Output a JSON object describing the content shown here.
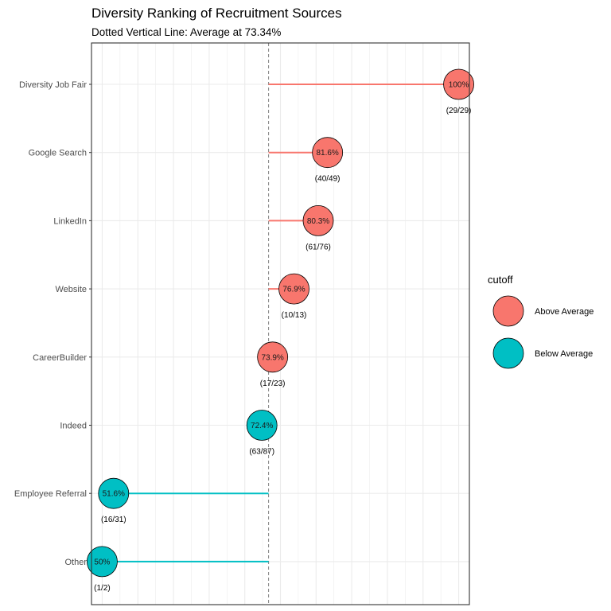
{
  "chart_data": {
    "type": "lollipop",
    "title": "Diversity Ranking of Recruitment Sources",
    "subtitle": "Dotted Vertical Line: Average at 73.34%",
    "average": 73.34,
    "xlim": [
      48.5,
      101.5
    ],
    "grid": true,
    "reference_line": {
      "value": 73.34,
      "style": "dashed"
    },
    "colors": {
      "above": "#F8766D",
      "below": "#00BFC4"
    },
    "legend": {
      "title": "cutoff",
      "position": "right",
      "entries": [
        "Above Average",
        "Below Average"
      ]
    },
    "points": [
      {
        "category": "Diversity Job Fair",
        "value": 100,
        "label": "100%",
        "count": "(29/29)",
        "group": "Above Average"
      },
      {
        "category": "Google Search",
        "value": 81.6,
        "label": "81.6%",
        "count": "(40/49)",
        "group": "Above Average"
      },
      {
        "category": "LinkedIn",
        "value": 80.3,
        "label": "80.3%",
        "count": "(61/76)",
        "group": "Above Average"
      },
      {
        "category": "Website",
        "value": 76.9,
        "label": "76.9%",
        "count": "(10/13)",
        "group": "Above Average"
      },
      {
        "category": "CareerBuilder",
        "value": 73.9,
        "label": "73.9%",
        "count": "(17/23)",
        "group": "Above Average"
      },
      {
        "category": "Indeed",
        "value": 72.4,
        "label": "72.4%",
        "count": "(63/87)",
        "group": "Below Average"
      },
      {
        "category": "Employee Referral",
        "value": 51.6,
        "label": "51.6%",
        "count": "(16/31)",
        "group": "Below Average"
      },
      {
        "category": "Other",
        "value": 50,
        "label": "50%",
        "count": "(1/2)",
        "group": "Below Average"
      }
    ]
  }
}
